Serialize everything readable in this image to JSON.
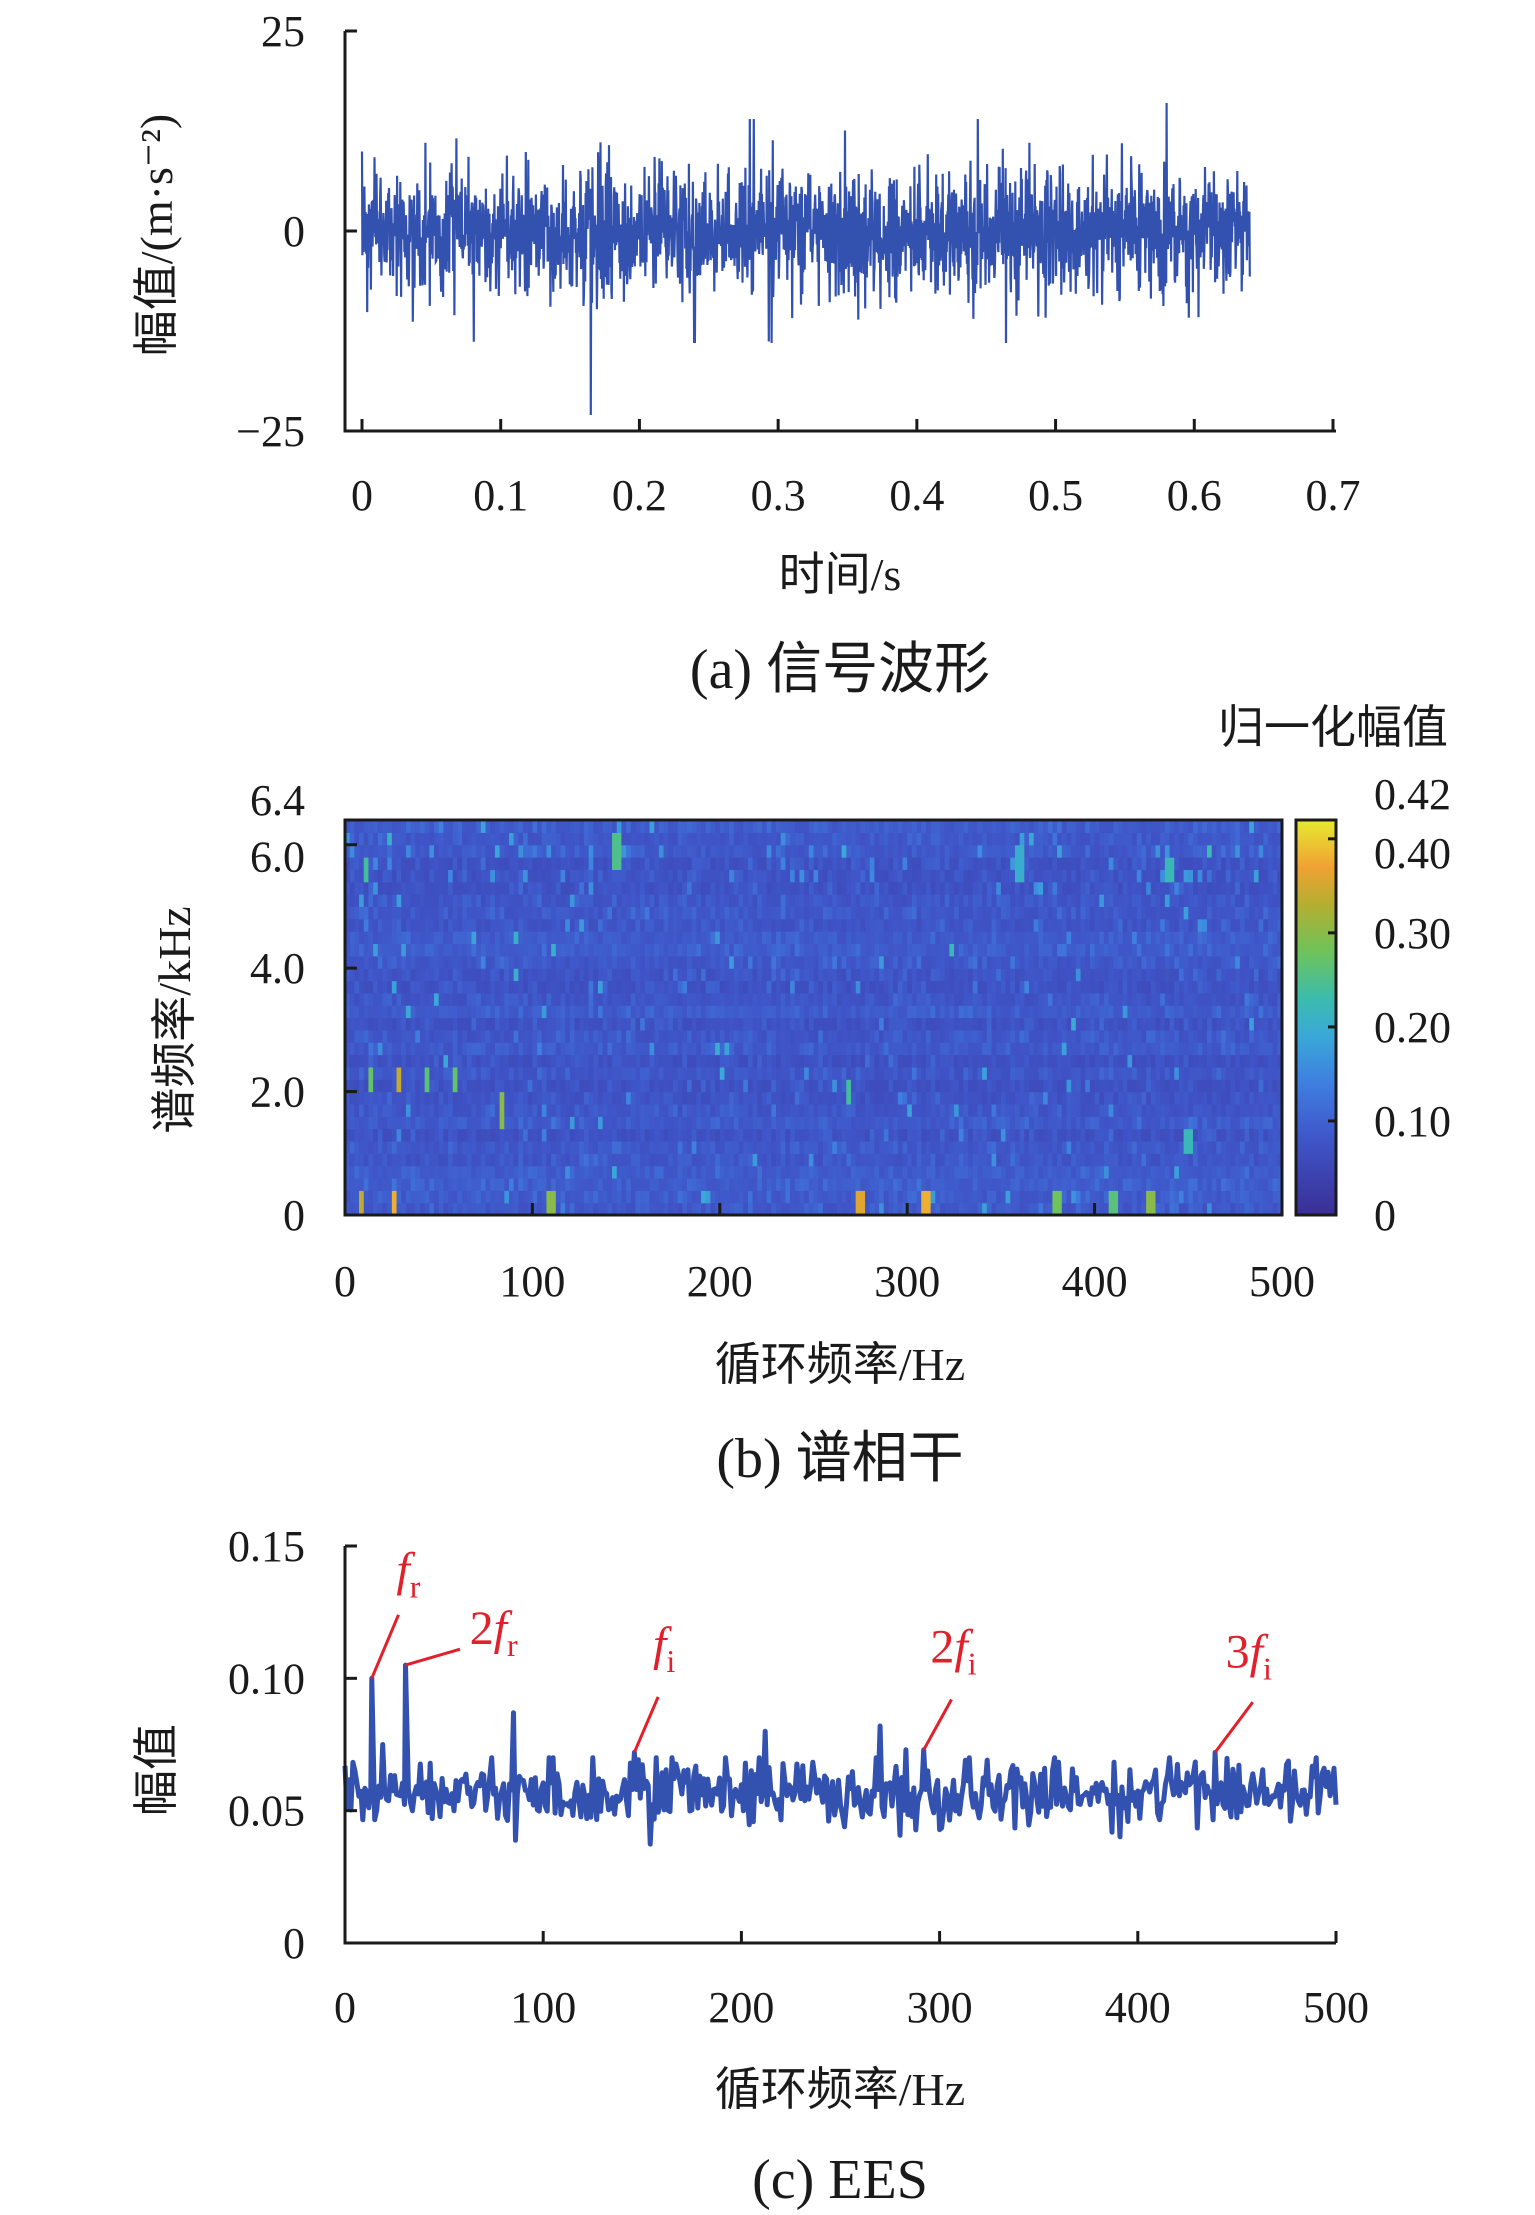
{
  "chart_data": [
    {
      "type": "line",
      "caption": "(a) 信号波形",
      "xlabel": "时间/s",
      "ylabel": "幅值/(m·s⁻²)",
      "xlim": [
        0,
        0.7
      ],
      "ylim": [
        -25,
        25
      ],
      "xticks": [
        "0",
        "0.1",
        "0.2",
        "0.3",
        "0.4",
        "0.5",
        "0.6",
        "0.7"
      ],
      "yticks": [
        "25",
        "0",
        "−25"
      ],
      "series": [
        {
          "name": "vibration signal",
          "color": "#3352b0",
          "t_end": 0.64,
          "typical_amplitude": 8,
          "max": 16,
          "max_at": 0.58,
          "min": -23,
          "min_at": 0.165
        }
      ]
    },
    {
      "type": "heatmap",
      "caption": "(b) 谱相干",
      "xlabel": "循环频率/Hz",
      "ylabel": "谱频率/kHz",
      "xlim": [
        0,
        500
      ],
      "ylim": [
        0,
        6.4
      ],
      "xticks": [
        "0",
        "100",
        "200",
        "300",
        "400",
        "500"
      ],
      "yticks": [
        "0",
        "2.0",
        "4.0",
        "6.0",
        "6.4"
      ],
      "colorbar": {
        "title": "归一化幅值",
        "range": [
          0,
          0.42
        ],
        "ticks": [
          "0",
          "0.10",
          "0.20",
          "0.30",
          "0.40",
          "0.42"
        ]
      },
      "background_level": 0.06,
      "hotspots": [
        {
          "x": 8,
          "y": 0.1,
          "v": 0.34
        },
        {
          "x": 27,
          "y": 0.1,
          "v": 0.38
        },
        {
          "x": 110,
          "y": 0.1,
          "v": 0.3
        },
        {
          "x": 275,
          "y": 0.1,
          "v": 0.36
        },
        {
          "x": 310,
          "y": 0.1,
          "v": 0.38
        },
        {
          "x": 380,
          "y": 0.1,
          "v": 0.28
        },
        {
          "x": 410,
          "y": 0.1,
          "v": 0.26
        },
        {
          "x": 430,
          "y": 0.1,
          "v": 0.3
        },
        {
          "x": 14,
          "y": 2.2,
          "v": 0.27
        },
        {
          "x": 28,
          "y": 2.2,
          "v": 0.34
        },
        {
          "x": 44,
          "y": 2.2,
          "v": 0.26
        },
        {
          "x": 58,
          "y": 2.2,
          "v": 0.27
        },
        {
          "x": 84,
          "y": 1.7,
          "v": 0.3
        },
        {
          "x": 268,
          "y": 2.0,
          "v": 0.24
        },
        {
          "x": 12,
          "y": 5.6,
          "v": 0.24
        },
        {
          "x": 145,
          "y": 5.9,
          "v": 0.25
        },
        {
          "x": 440,
          "y": 5.6,
          "v": 0.22
        },
        {
          "x": 360,
          "y": 5.7,
          "v": 0.2
        },
        {
          "x": 450,
          "y": 1.2,
          "v": 0.22
        }
      ]
    },
    {
      "type": "line",
      "caption": "(c) EES",
      "xlabel": "循环频率/Hz",
      "ylabel": "幅值",
      "xlim": [
        0,
        500
      ],
      "ylim": [
        0,
        0.15
      ],
      "xticks": [
        "0",
        "100",
        "200",
        "300",
        "400",
        "500"
      ],
      "yticks": [
        "0",
        "0.05",
        "0.10",
        "0.15"
      ],
      "series": [
        {
          "name": "EES",
          "color": "#3352b0",
          "baseline": 0.055
        }
      ],
      "peaks": [
        {
          "label": "f",
          "sub": "r",
          "pre": "",
          "x": 13.5,
          "y": 0.1
        },
        {
          "label": "f",
          "sub": "r",
          "pre": "2",
          "x": 30.5,
          "y": 0.105
        },
        {
          "label": "f",
          "sub": "i",
          "pre": "",
          "x": 146,
          "y": 0.072
        },
        {
          "label": "f",
          "sub": "i",
          "pre": "2",
          "x": 292,
          "y": 0.073
        },
        {
          "label": "f",
          "sub": "i",
          "pre": "3",
          "x": 439,
          "y": 0.072
        }
      ],
      "other_peaks": [
        {
          "x": 85,
          "y": 0.087
        },
        {
          "x": 212,
          "y": 0.08
        },
        {
          "x": 270,
          "y": 0.082
        },
        {
          "x": 19,
          "y": 0.075
        },
        {
          "x": 283,
          "y": 0.073
        }
      ]
    }
  ]
}
